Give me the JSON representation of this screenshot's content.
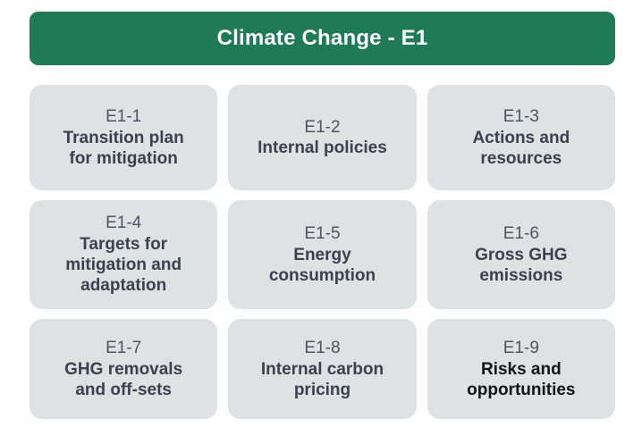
{
  "header": {
    "title": "Climate Change - E1"
  },
  "colors": {
    "header_bg": "#1e7b55",
    "header_text": "#ffffff",
    "card_bg": "#dee2e2",
    "card_code_text": "#4d5565",
    "card_title_text": "#3a4150",
    "card_title_emphasis_text": "#141414"
  },
  "cards": [
    {
      "code": "E1-1",
      "title": "Transition plan\nfor mitigation"
    },
    {
      "code": "E1-2",
      "title": "Internal policies"
    },
    {
      "code": "E1-3",
      "title": "Actions and\nresources"
    },
    {
      "code": "E1-4",
      "title": "Targets for\nmitigation and\nadaptation"
    },
    {
      "code": "E1-5",
      "title": "Energy\nconsumption"
    },
    {
      "code": "E1-6",
      "title": "Gross GHG\nemissions"
    },
    {
      "code": "E1-7",
      "title": "GHG removals\nand off-sets"
    },
    {
      "code": "E1-8",
      "title": "Internal carbon\npricing"
    },
    {
      "code": "E1-9",
      "title": "Risks and\nopportunities"
    }
  ]
}
